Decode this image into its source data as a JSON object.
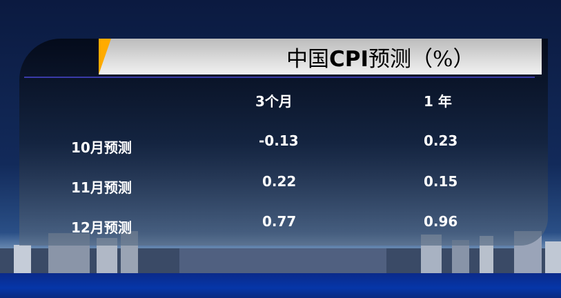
{
  "slide": {
    "title_prefix": "中国",
    "title_bold": "CPI",
    "title_suffix": "预测（%）"
  },
  "table": {
    "headers": [
      "",
      "3个月",
      "1 年"
    ],
    "rows": [
      {
        "label": "10月预测",
        "m3": "-0.13",
        "y1": "0.23"
      },
      {
        "label": "11月预测",
        "m3": "0.22",
        "y1": "0.15"
      },
      {
        "label": "12月预测",
        "m3": "0.77",
        "y1": "0.96"
      }
    ]
  },
  "colors": {
    "accent": "#ffab00",
    "rule": "#3a3aa8"
  }
}
